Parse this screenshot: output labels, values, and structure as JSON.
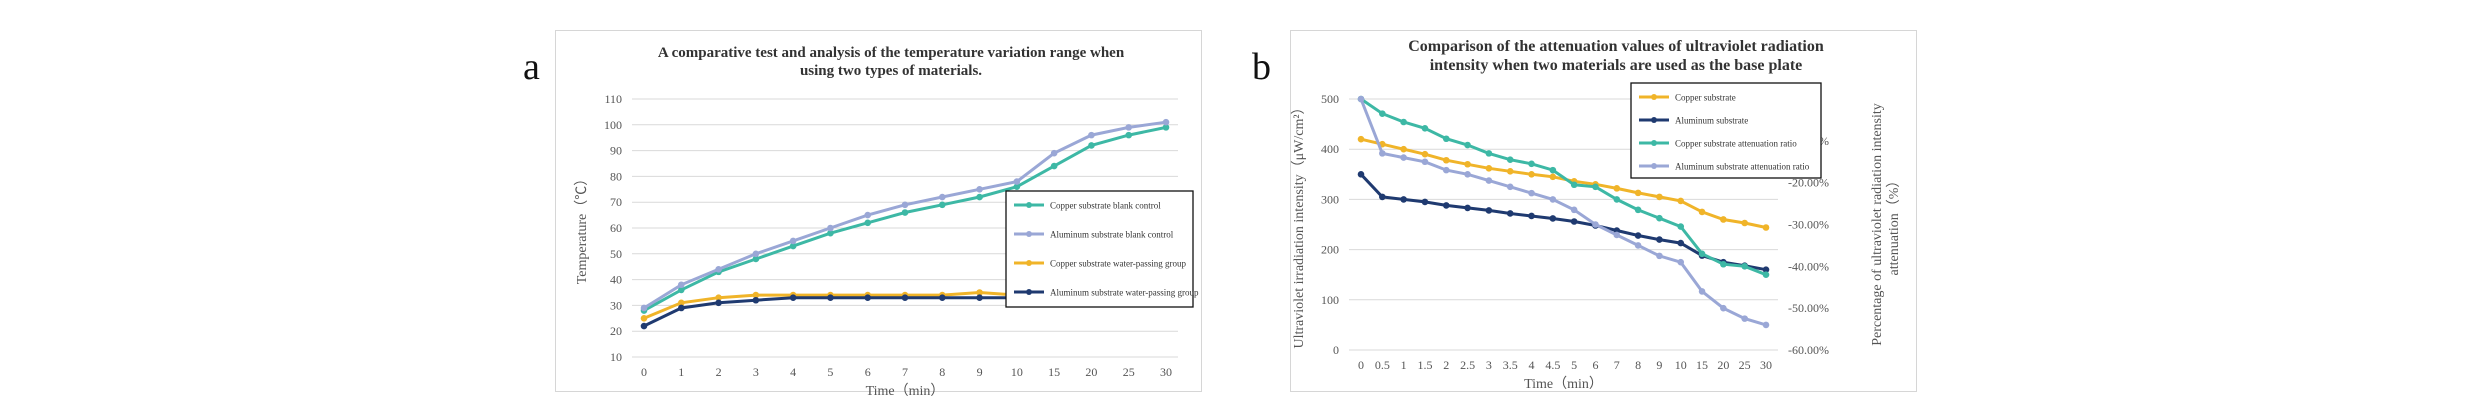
{
  "panels": {
    "a": "a",
    "b": "b"
  },
  "chart_data": [
    {
      "type": "line",
      "title": "A comparative test and analysis of the temperature variation range when using two types of materials.",
      "title_lines": [
        "A comparative test and analysis of the temperature variation range when",
        "using two types of materials."
      ],
      "xlabel": "Time（min）",
      "ylabel": "Temperature（℃）",
      "categories": [
        "0",
        "1",
        "2",
        "3",
        "4",
        "5",
        "6",
        "7",
        "8",
        "9",
        "10",
        "15",
        "20",
        "25",
        "30"
      ],
      "ylim": [
        10,
        110
      ],
      "yticks": [
        10,
        20,
        30,
        40,
        50,
        60,
        70,
        80,
        90,
        100,
        110
      ],
      "grid": true,
      "legend_position": "right",
      "series": [
        {
          "name": "Copper substrate blank control",
          "color": "#3db8a5",
          "values": [
            28,
            36,
            43,
            48,
            53,
            58,
            62,
            66,
            69,
            72,
            76,
            84,
            92,
            96,
            99
          ]
        },
        {
          "name": "Aluminum substrate blank control",
          "color": "#9aa7d6",
          "values": [
            29,
            38,
            44,
            50,
            55,
            60,
            65,
            69,
            72,
            75,
            78,
            89,
            96,
            99,
            101
          ]
        },
        {
          "name": "Copper substrate water-passing group",
          "color": "#f0b429",
          "values": [
            25,
            31,
            33,
            34,
            34,
            34,
            34,
            34,
            34,
            35,
            34,
            35,
            35,
            35,
            35
          ]
        },
        {
          "name": "Aluminum substrate water-passing group",
          "color": "#1f3a70",
          "values": [
            22,
            29,
            31,
            32,
            33,
            33,
            33,
            33,
            33,
            33,
            33,
            34,
            34,
            34,
            34
          ]
        }
      ]
    },
    {
      "type": "line",
      "title": "Comparison of the attenuation values of ultraviolet radiation intensity when two materials are used as the base plate",
      "title_lines": [
        "Comparison of the attenuation values of ultraviolet radiation",
        "intensity when two materials are used as the base plate"
      ],
      "xlabel": "Time（min）",
      "ylabel": "Ultraviolet irradiation intensity（μW/cm²）",
      "y2label": "Percentage of ultraviolet radiation intensity attenuation（%）",
      "y2label_lines": [
        "Percentage of ultraviolet radiation intensity",
        "attenuation（%）"
      ],
      "categories": [
        "0",
        "0.5",
        "1",
        "1.5",
        "2",
        "2.5",
        "3",
        "3.5",
        "4",
        "4.5",
        "5",
        "6",
        "7",
        "8",
        "9",
        "10",
        "15",
        "20",
        "25",
        "30"
      ],
      "ylim": [
        0,
        500
      ],
      "yticks": [
        0,
        100,
        200,
        300,
        400,
        500
      ],
      "y2lim": [
        -60,
        0
      ],
      "y2ticks": [
        "0.00%",
        "-10.00%",
        "-20.00%",
        "-30.00%",
        "-40.00%",
        "-50.00%",
        "-60.00%"
      ],
      "grid": true,
      "legend_position": "top-right",
      "series": [
        {
          "name": "Copper substrate",
          "color": "#f0b429",
          "axis": "left",
          "values": [
            420,
            410,
            400,
            390,
            378,
            370,
            362,
            356,
            350,
            345,
            336,
            330,
            322,
            313,
            305,
            297,
            275,
            260,
            253,
            244
          ]
        },
        {
          "name": "Aluminum substrate",
          "color": "#1f3a70",
          "axis": "left",
          "values": [
            350,
            305,
            300,
            295,
            288,
            283,
            278,
            272,
            267,
            262,
            256,
            248,
            238,
            228,
            220,
            213,
            188,
            175,
            168,
            160
          ]
        },
        {
          "name": "Copper substrate attenuation ratio",
          "color": "#3db8a5",
          "axis": "right",
          "values": [
            0,
            -3.5,
            -5.5,
            -7,
            -9.5,
            -11,
            -13,
            -14.5,
            -15.5,
            -17,
            -20.5,
            -21,
            -24,
            -26.5,
            -28.5,
            -30.5,
            -37,
            -39.5,
            -40,
            -42
          ]
        },
        {
          "name": "Aluminum substrate attenuation ratio",
          "color": "#9aa7d6",
          "axis": "right",
          "values": [
            0,
            -13,
            -14,
            -15,
            -17,
            -18,
            -19.5,
            -21,
            -22.5,
            -24,
            -26.5,
            -30,
            -32.5,
            -35,
            -37.5,
            -39,
            -46,
            -50,
            -52.5,
            -54
          ]
        }
      ]
    }
  ]
}
